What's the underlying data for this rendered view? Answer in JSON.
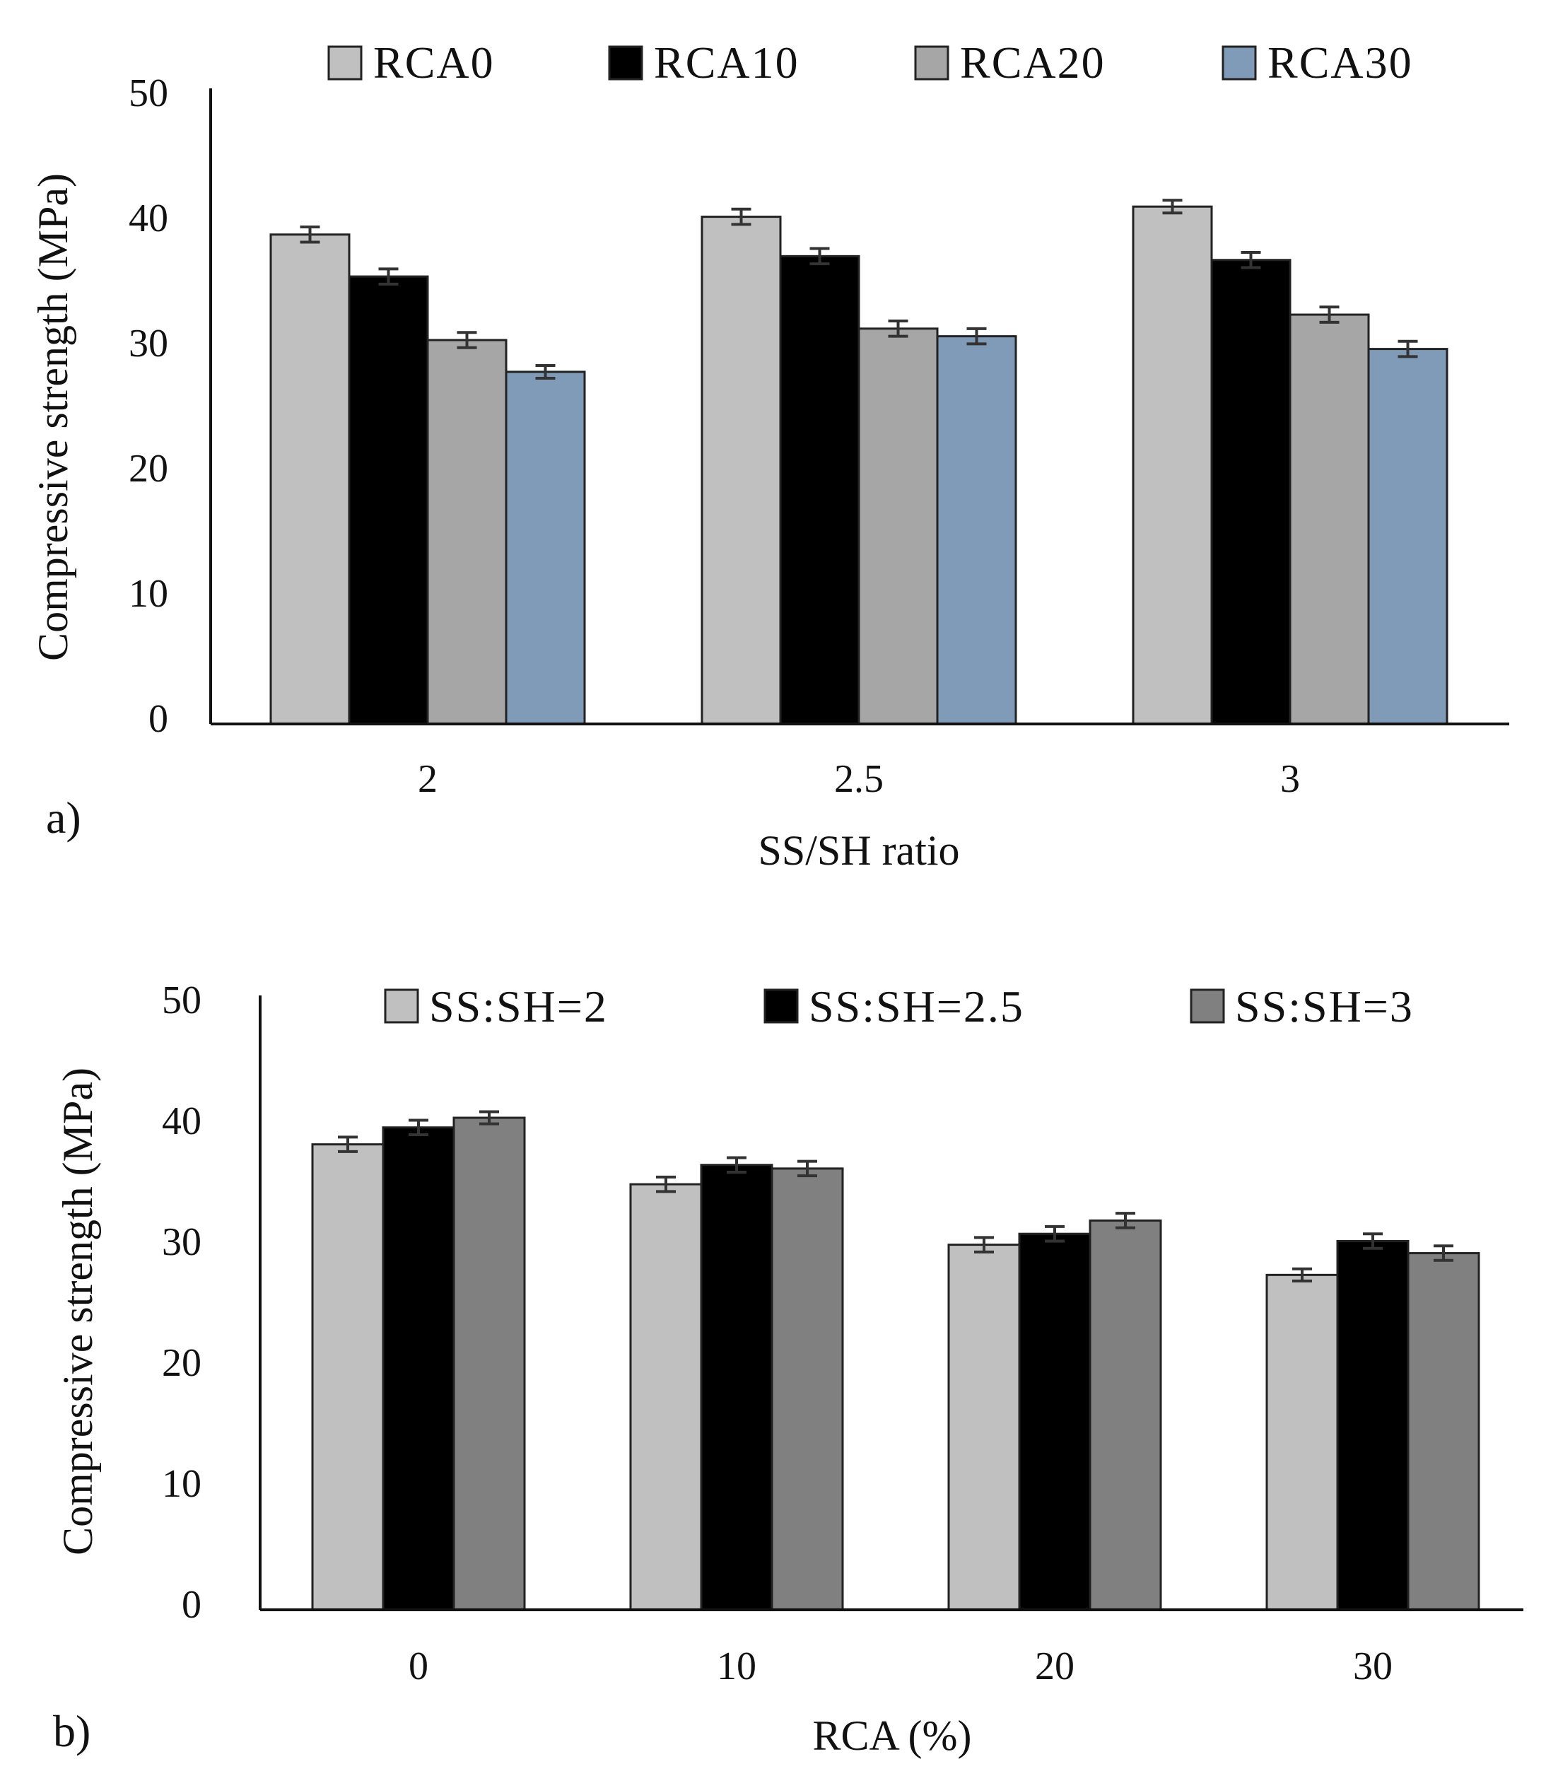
{
  "chart_data": [
    {
      "type": "bar",
      "panel_label": "a)",
      "title": "",
      "xlabel": "SS/SH ratio",
      "ylabel": "Compressive strength (MPa)",
      "ylim": [
        0,
        50
      ],
      "yticks": [
        0,
        10,
        20,
        30,
        40,
        50
      ],
      "categories": [
        "2",
        "2.5",
        "3"
      ],
      "legend_position": "top",
      "series": [
        {
          "name": "RCA0",
          "color": "#c0c0c0",
          "values": [
            38.5,
            39.9,
            40.7
          ],
          "errors": [
            0.6,
            0.6,
            0.5
          ]
        },
        {
          "name": "RCA10",
          "color": "#000000",
          "values": [
            35.2,
            36.8,
            36.5
          ],
          "errors": [
            0.6,
            0.6,
            0.6
          ]
        },
        {
          "name": "RCA20",
          "color": "#a6a6a6",
          "values": [
            30.2,
            31.1,
            32.2
          ],
          "errors": [
            0.6,
            0.6,
            0.6
          ]
        },
        {
          "name": "RCA30",
          "color": "#7f9bb8",
          "values": [
            27.7,
            30.5,
            29.5
          ],
          "errors": [
            0.5,
            0.6,
            0.6
          ]
        }
      ]
    },
    {
      "type": "bar",
      "panel_label": "b)",
      "title": "",
      "xlabel": "RCA (%)",
      "ylabel": "Compressive strength (MPa)",
      "ylim": [
        0,
        50
      ],
      "yticks": [
        0,
        10,
        20,
        30,
        40,
        50
      ],
      "categories": [
        "0",
        "10",
        "20",
        "30"
      ],
      "legend_position": "top",
      "series": [
        {
          "name": "SS:SH=2",
          "color": "#c0c0c0",
          "values": [
            38.5,
            35.2,
            30.2,
            27.7
          ],
          "errors": [
            0.6,
            0.6,
            0.6,
            0.5
          ]
        },
        {
          "name": "SS:SH=2.5",
          "color": "#000000",
          "values": [
            39.9,
            36.8,
            31.1,
            30.5
          ],
          "errors": [
            0.6,
            0.6,
            0.6,
            0.6
          ]
        },
        {
          "name": "SS:SH=3",
          "color": "#808080",
          "values": [
            40.7,
            36.5,
            32.2,
            29.5
          ],
          "errors": [
            0.5,
            0.6,
            0.6,
            0.6
          ]
        }
      ]
    }
  ]
}
